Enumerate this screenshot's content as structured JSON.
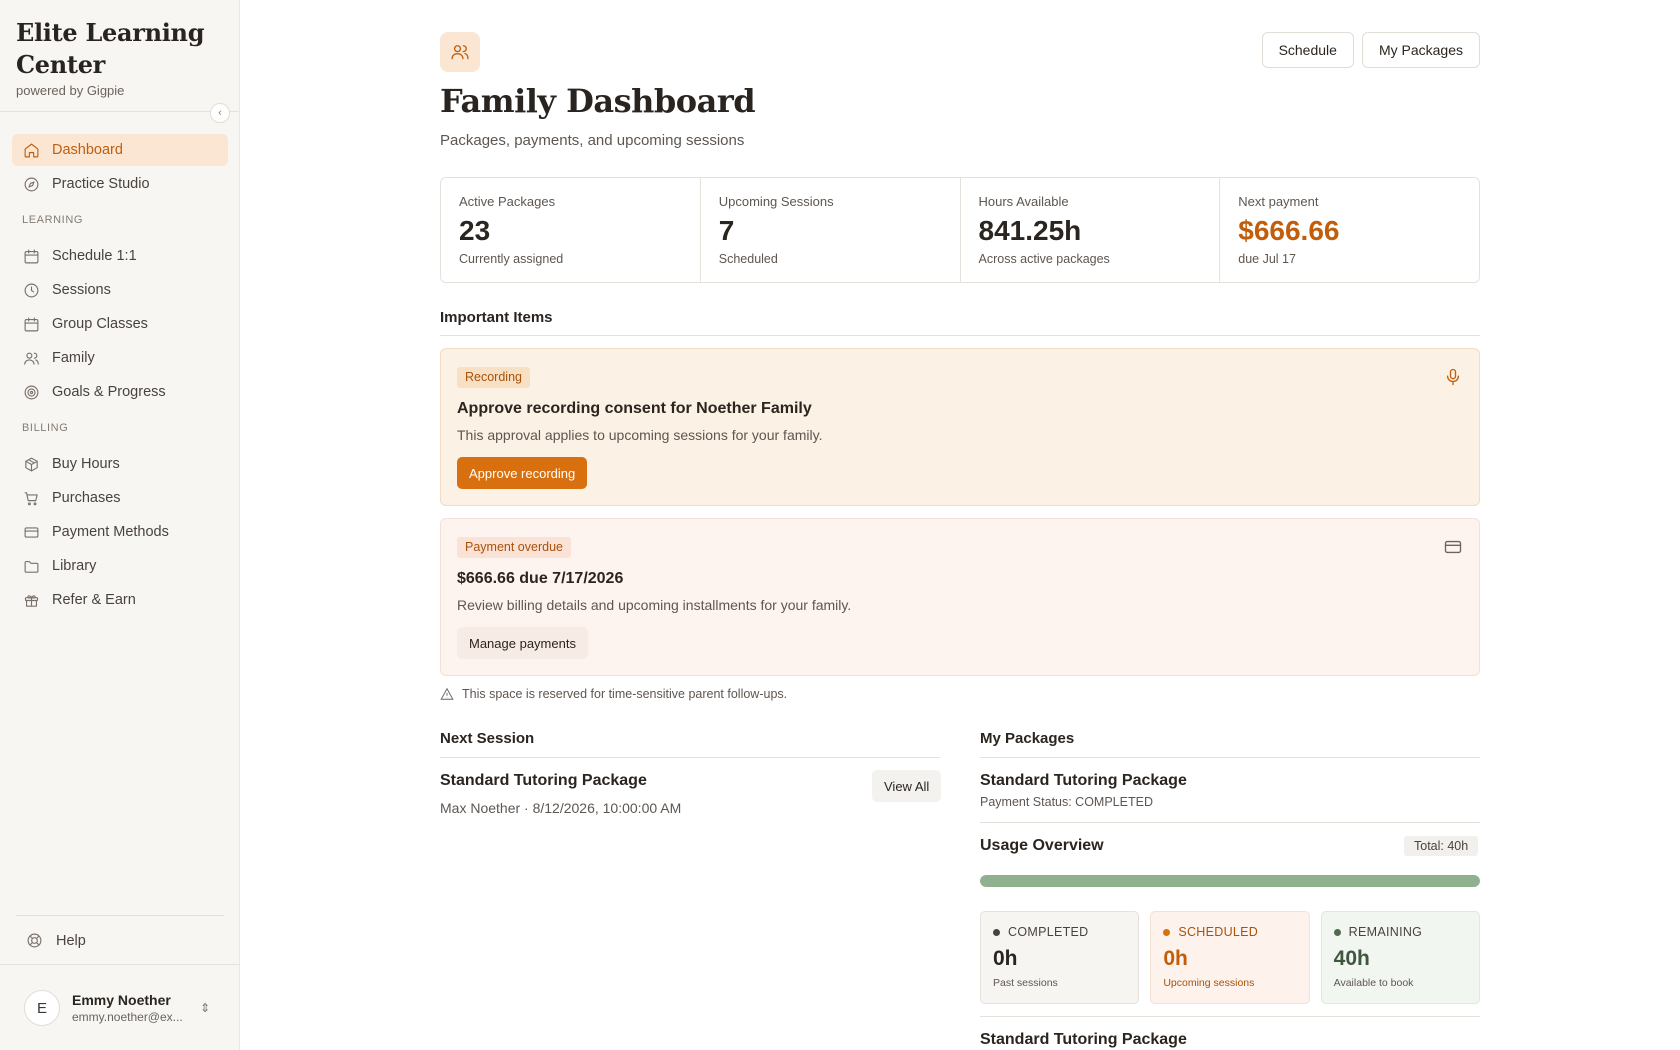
{
  "sidebar": {
    "brand_title": "Elite Learning Center",
    "brand_sub": "powered by Gigpie",
    "items_main": [
      {
        "label": "Dashboard",
        "icon": "home-icon",
        "active": true
      },
      {
        "label": "Practice Studio",
        "icon": "compass-icon",
        "active": false
      }
    ],
    "group_learning": "LEARNING",
    "items_learning": [
      {
        "label": "Schedule 1:1",
        "icon": "calendar-icon"
      },
      {
        "label": "Sessions",
        "icon": "clock-icon"
      },
      {
        "label": "Group Classes",
        "icon": "calendar-icon"
      },
      {
        "label": "Family",
        "icon": "users-icon"
      },
      {
        "label": "Goals & Progress",
        "icon": "target-icon"
      }
    ],
    "group_billing": "BILLING",
    "items_billing": [
      {
        "label": "Buy Hours",
        "icon": "package-icon"
      },
      {
        "label": "Purchases",
        "icon": "cart-icon"
      },
      {
        "label": "Payment Methods",
        "icon": "credit-card-icon"
      },
      {
        "label": "Library",
        "icon": "folder-icon"
      },
      {
        "label": "Refer & Earn",
        "icon": "gift-icon"
      }
    ],
    "help_label": "Help",
    "user": {
      "initial": "E",
      "name": "Emmy Noether",
      "email": "emmy.noether@ex..."
    }
  },
  "header": {
    "title": "Family Dashboard",
    "subtitle": "Packages, payments, and upcoming sessions",
    "schedule_label": "Schedule",
    "packages_label": "My Packages"
  },
  "stats": [
    {
      "label": "Active Packages",
      "value": "23",
      "note": "Currently assigned"
    },
    {
      "label": "Upcoming Sessions",
      "value": "7",
      "note": "Scheduled"
    },
    {
      "label": "Hours Available",
      "value": "841.25h",
      "note": "Across active packages"
    },
    {
      "label": "Next payment",
      "value": "$666.66",
      "note": "due Jul 17"
    }
  ],
  "important": {
    "heading": "Important Items",
    "recording": {
      "tag": "Recording",
      "title": "Approve recording consent for Noether Family",
      "desc": "This approval applies to upcoming sessions for your family.",
      "action": "Approve recording"
    },
    "payment": {
      "tag": "Payment overdue",
      "title": "$666.66 due 7/17/2026",
      "desc": "Review billing details and upcoming installments for your family.",
      "action": "Manage payments"
    },
    "note": "This space is reserved for time-sensitive parent follow-ups."
  },
  "next_session": {
    "heading": "Next Session",
    "title": "Standard Tutoring Package",
    "meta": "Max Noether · 8/12/2026, 10:00:00 AM",
    "view_all": "View All"
  },
  "my_packages": {
    "heading": "My Packages",
    "package_title": "Standard Tutoring Package",
    "payment_status": "Payment Status: COMPLETED",
    "usage_title": "Usage Overview",
    "total": "Total: 40h",
    "usage_fraction_remaining": 1.0,
    "cards": [
      {
        "label": "COMPLETED",
        "value": "0h",
        "note": "Past sessions"
      },
      {
        "label": "SCHEDULED",
        "value": "0h",
        "note": "Upcoming sessions"
      },
      {
        "label": "REMAINING",
        "value": "40h",
        "note": "Available to book"
      }
    ],
    "next_package_title": "Standard Tutoring Package"
  },
  "colors": {
    "accent": "#d9700f",
    "active_bg": "#fbe6d4",
    "usage_bar": "#8fb18f"
  }
}
